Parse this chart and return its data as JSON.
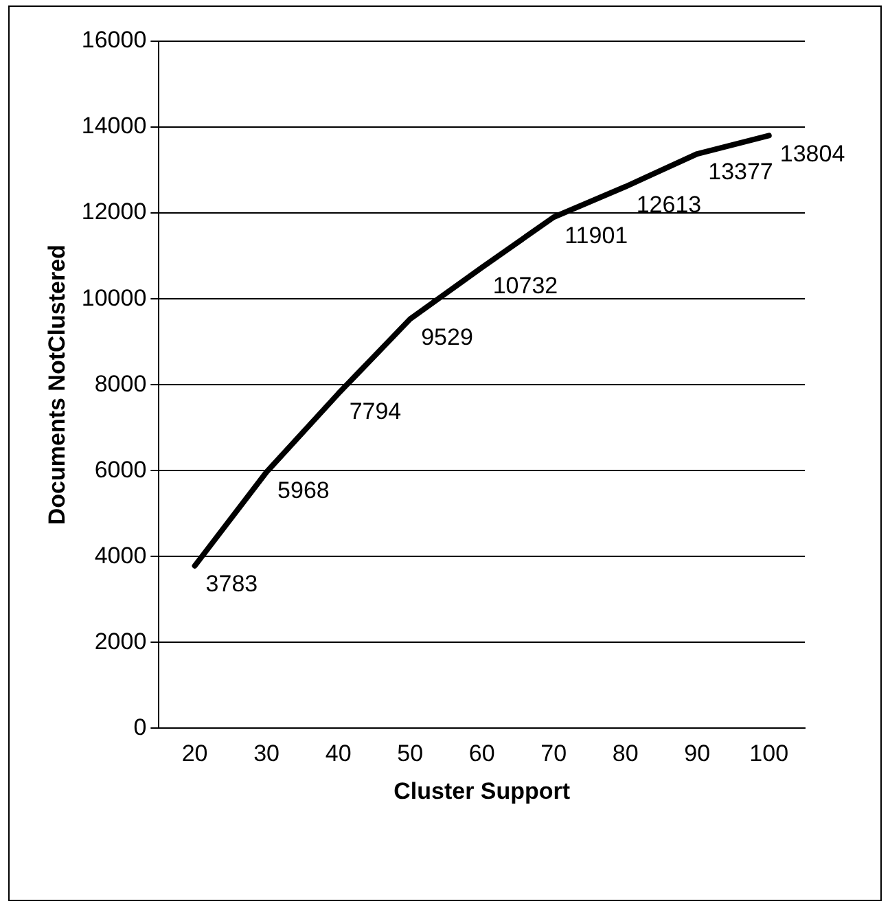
{
  "chart_data": {
    "type": "line",
    "xlabel": "Cluster Support",
    "ylabel": "Documents NotClustered",
    "categories": [
      "20",
      "30",
      "40",
      "50",
      "60",
      "70",
      "80",
      "90",
      "100"
    ],
    "series": [
      {
        "color": "#000000",
        "values": [
          3783,
          5968,
          7794,
          9529,
          10732,
          11901,
          12613,
          13377,
          13804
        ]
      }
    ],
    "ylim": [
      0,
      16000
    ],
    "yticks": [
      0,
      2000,
      4000,
      6000,
      8000,
      10000,
      12000,
      14000,
      16000
    ],
    "grid": "y",
    "legend": false,
    "marker": "none",
    "line_style": "solid",
    "data_labels": true
  }
}
